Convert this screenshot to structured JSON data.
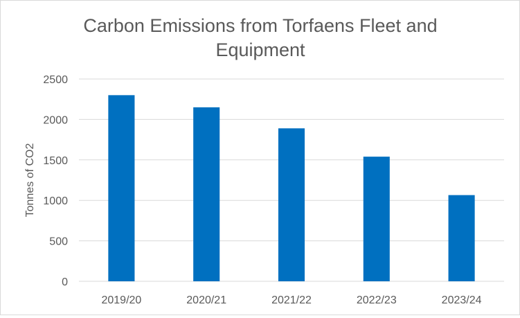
{
  "chart_data": {
    "type": "bar",
    "title_lines": [
      "Carbon Emissions from Torfaens Fleet and",
      "Equipment"
    ],
    "ylabel": "Tonnes of CO2",
    "categories": [
      "2019/20",
      "2020/21",
      "2021/22",
      "2022/23",
      "2023/24"
    ],
    "values": [
      2300,
      2150,
      1890,
      1540,
      1065
    ],
    "ylim": [
      0,
      2500
    ],
    "yticks": [
      0,
      500,
      1000,
      1500,
      2000,
      2500
    ],
    "grid": true,
    "legend": "none",
    "colors": {
      "bar": "#0070c0",
      "grid": "#d9d9d9",
      "text": "#595959"
    }
  }
}
